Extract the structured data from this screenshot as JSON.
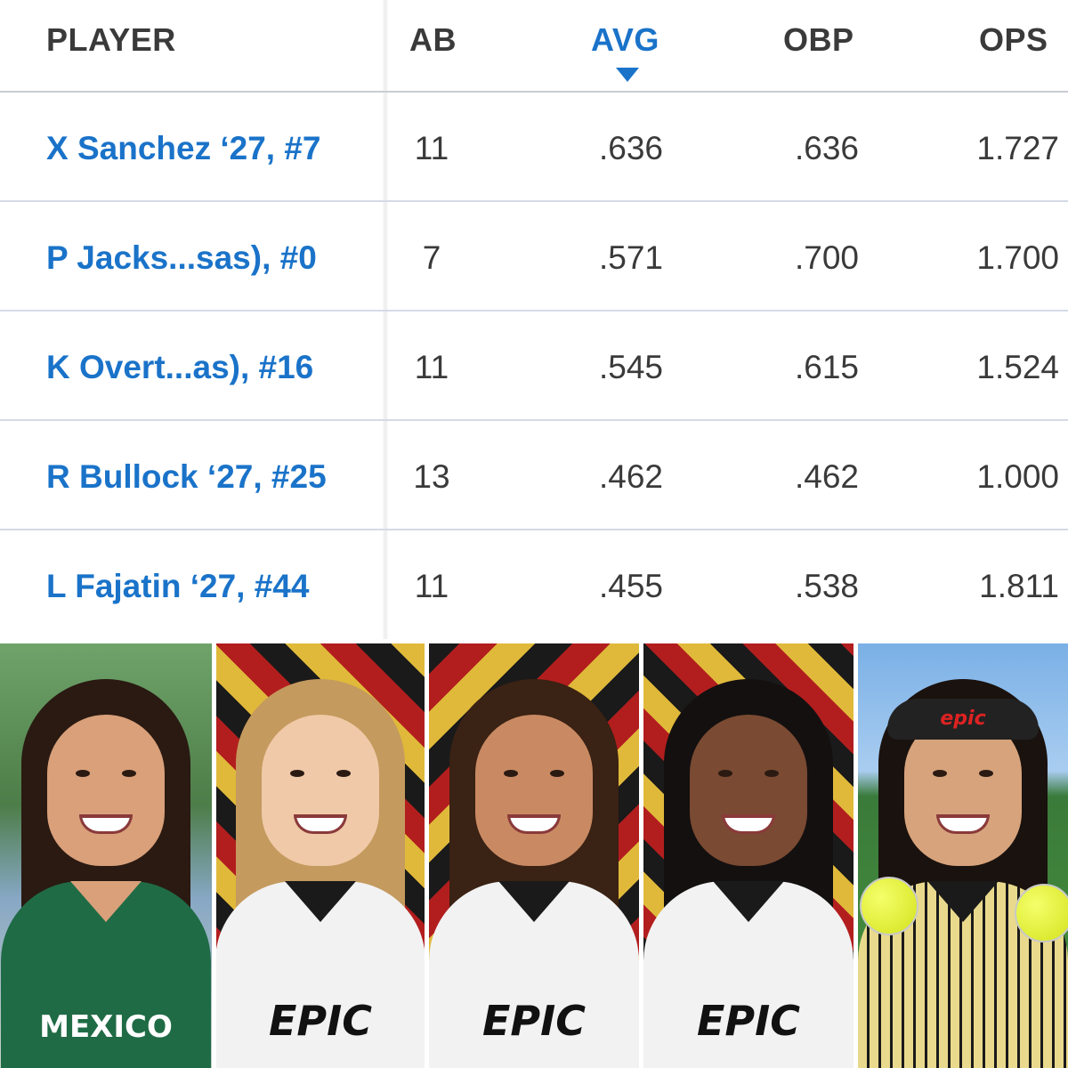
{
  "table": {
    "columns": {
      "player": "PLAYER",
      "ab": "AB",
      "avg": "AVG",
      "obp": "OBP",
      "ops": "OPS"
    },
    "sorted_column": "AVG",
    "sort_direction": "descending",
    "rows": [
      {
        "player": "X Sanchez ‘27, #7",
        "ab": "11",
        "avg": ".636",
        "obp": ".636",
        "ops": "1.727"
      },
      {
        "player": "P Jacks...sas), #0",
        "ab": "7",
        "avg": ".571",
        "obp": ".700",
        "ops": "1.700"
      },
      {
        "player": "K Overt...as), #16",
        "ab": "11",
        "avg": ".545",
        "obp": ".615",
        "ops": "1.524"
      },
      {
        "player": "R Bullock ‘27, #25",
        "ab": "13",
        "avg": ".462",
        "obp": ".462",
        "ops": "1.000"
      },
      {
        "player": "L Fajatin ‘27, #44",
        "ab": "11",
        "avg": ".455",
        "obp": ".538",
        "ops": "1.811"
      }
    ]
  },
  "photos": {
    "p1": {
      "jersey_text": "MEXICO"
    },
    "p2": {
      "jersey_text": "EPIC"
    },
    "p3": {
      "jersey_text": "EPIC"
    },
    "p4": {
      "jersey_text": "EPIC"
    },
    "p5": {
      "visor_text": "epic"
    }
  },
  "colors": {
    "link_blue": "#1a73c9",
    "text_gray": "#3a3a3a",
    "row_border": "#d5dae6"
  }
}
